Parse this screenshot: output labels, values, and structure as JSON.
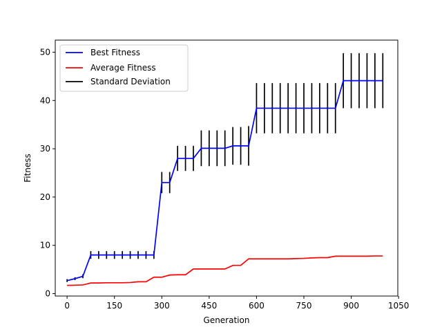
{
  "chart_data": {
    "type": "line",
    "xlabel": "Generation",
    "ylabel": "Fitness",
    "xlim": [
      -37.5,
      1047.5
    ],
    "ylim": [
      -0.5,
      52.5
    ],
    "xticks": [
      0,
      150,
      300,
      450,
      600,
      750,
      900,
      1050
    ],
    "yticks": [
      0,
      10,
      20,
      30,
      40,
      50
    ],
    "grid": false,
    "legend": "top-left",
    "x": [
      0,
      25,
      50,
      75,
      100,
      125,
      150,
      175,
      200,
      225,
      250,
      275,
      300,
      325,
      350,
      375,
      400,
      425,
      450,
      475,
      500,
      525,
      550,
      575,
      600,
      625,
      650,
      675,
      700,
      725,
      750,
      775,
      800,
      825,
      850,
      875,
      900,
      925,
      950,
      975,
      1000
    ],
    "series": [
      {
        "name": "Best Fitness",
        "color": "#0000ff",
        "values": [
          2.7,
          3.1,
          3.6,
          8.0,
          8.0,
          8.0,
          8.0,
          8.0,
          8.0,
          8.0,
          8.0,
          8.0,
          23.0,
          23.0,
          28.0,
          28.0,
          28.0,
          30.1,
          30.1,
          30.1,
          30.1,
          30.6,
          30.6,
          30.6,
          38.4,
          38.4,
          38.4,
          38.4,
          38.4,
          38.4,
          38.4,
          38.4,
          38.4,
          38.4,
          38.4,
          44.1,
          44.1,
          44.1,
          44.1,
          44.1,
          44.1
        ]
      },
      {
        "name": "Average Fitness",
        "color": "#ff0000",
        "values": [
          1.7,
          1.75,
          1.8,
          2.2,
          2.2,
          2.25,
          2.25,
          2.25,
          2.3,
          2.45,
          2.45,
          3.4,
          3.4,
          3.85,
          3.9,
          3.9,
          5.1,
          5.1,
          5.1,
          5.1,
          5.1,
          5.85,
          5.85,
          7.2,
          7.2,
          7.2,
          7.2,
          7.2,
          7.2,
          7.25,
          7.3,
          7.4,
          7.45,
          7.45,
          7.75,
          7.75,
          7.75,
          7.75,
          7.75,
          7.8,
          7.8
        ]
      }
    ],
    "std_dev": {
      "name": "Standard Deviation",
      "color": "#000000",
      "values": [
        0.3,
        0.3,
        0.4,
        0.8,
        0.8,
        0.8,
        0.8,
        0.8,
        0.8,
        0.8,
        0.8,
        0.8,
        2.2,
        2.2,
        2.6,
        2.6,
        2.6,
        3.7,
        3.7,
        3.7,
        3.7,
        3.9,
        3.9,
        4.1,
        5.2,
        5.2,
        5.2,
        5.2,
        5.2,
        5.2,
        5.2,
        5.2,
        5.2,
        5.2,
        5.2,
        5.7,
        5.7,
        5.7,
        5.7,
        5.7,
        5.7
      ]
    }
  }
}
